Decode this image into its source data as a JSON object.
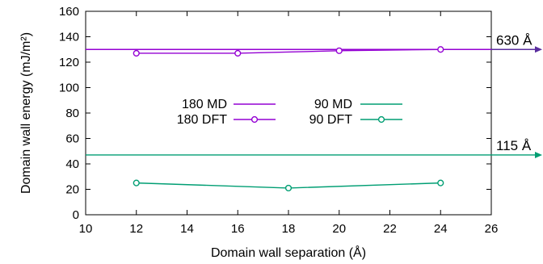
{
  "chart_data": {
    "type": "line",
    "xlabel": "Domain wall separation (Å)",
    "ylabel": "Domain wall energy (mJ/m²)",
    "xlim": [
      10,
      26
    ],
    "ylim": [
      0,
      160
    ],
    "xticks": [
      10,
      12,
      14,
      16,
      18,
      20,
      22,
      24,
      26
    ],
    "yticks": [
      0,
      20,
      40,
      60,
      80,
      100,
      120,
      140,
      160
    ],
    "grid": false,
    "legend_placement": "center-left",
    "series": [
      {
        "name": "180 MD",
        "kind": "hline",
        "y": 130,
        "color": "#9400d3"
      },
      {
        "name": "180 DFT",
        "kind": "line-marker",
        "x": [
          12,
          16,
          20,
          24
        ],
        "y": [
          127,
          127,
          129,
          130
        ],
        "color": "#9400d3"
      },
      {
        "name": "90 MD",
        "kind": "hline",
        "y": 47,
        "color": "#009e73"
      },
      {
        "name": "90 DFT",
        "kind": "line-marker",
        "x": [
          12,
          18,
          24
        ],
        "y": [
          25,
          21,
          25
        ],
        "color": "#009e73"
      }
    ],
    "annotations": [
      {
        "text": "630 Å",
        "y": 130,
        "color": "#5a2d9e"
      },
      {
        "text": "115 Å",
        "y": 47,
        "color": "#009e73"
      }
    ]
  }
}
